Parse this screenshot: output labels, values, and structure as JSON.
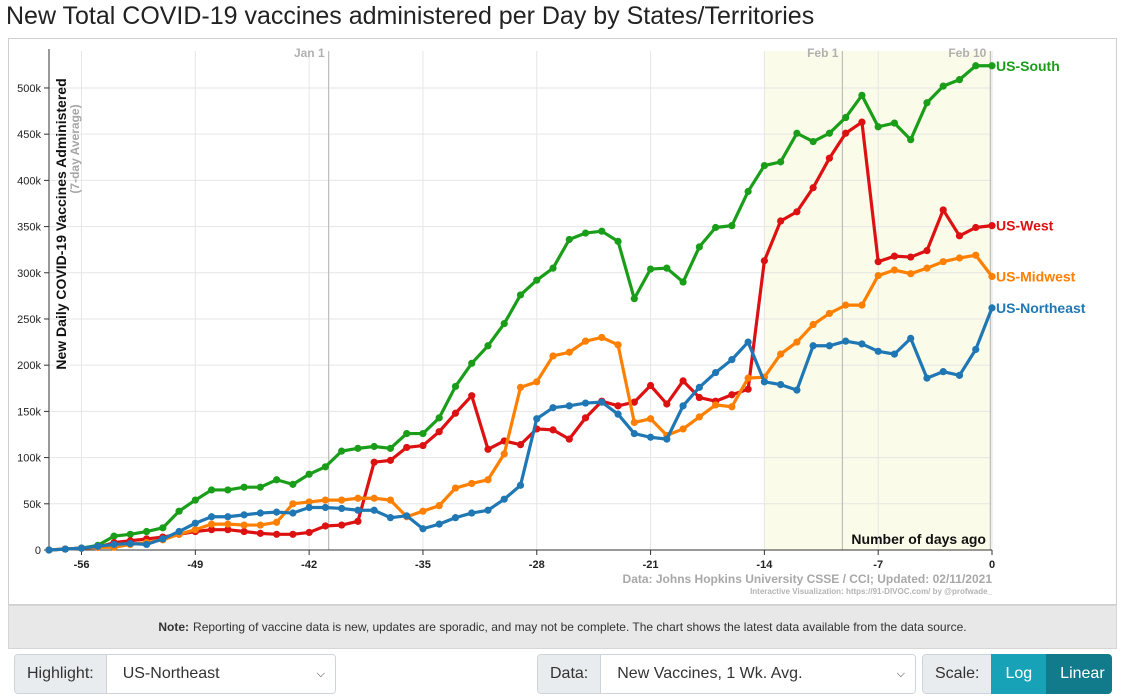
{
  "page": {
    "title": "New Total COVID-19 vaccines administered per Day by States/Territories"
  },
  "note": {
    "label": "Note:",
    "text": "Reporting of vaccine data is new, updates are sporadic, and may not be complete. The chart shows the latest data available from the data source."
  },
  "controls": {
    "highlight_label": "Highlight:",
    "highlight_value": "US-Northeast",
    "data_label": "Data:",
    "data_value": "New Vaccines, 1 Wk. Avg.",
    "scale_label": "Scale:",
    "scale_log": "Log",
    "scale_linear": "Linear",
    "scale_selected": "Linear"
  },
  "chart_data": {
    "type": "line",
    "title": "New Total COVID-19 vaccines administered per Day by States/Territories",
    "ylabel": "New Daily COVID-19 Vaccines Administered",
    "ylabel_sub": "(7-day Average)",
    "xlabel": "Number of days ago",
    "xlim": [
      -58,
      0
    ],
    "ylim": [
      0,
      540000
    ],
    "x_ticks": [
      -56,
      -49,
      -42,
      -35,
      -28,
      -21,
      -14,
      -7,
      0
    ],
    "y_ticks": [
      0,
      50000,
      100000,
      150000,
      200000,
      250000,
      300000,
      350000,
      400000,
      450000,
      500000
    ],
    "y_tick_labels": [
      "0",
      "50k",
      "100k",
      "150k",
      "200k",
      "250k",
      "300k",
      "350k",
      "400k",
      "450k",
      "500k"
    ],
    "date_markers": [
      {
        "label": "Jan 1",
        "x": -40.8
      },
      {
        "label": "Feb 1",
        "x": -9.2
      },
      {
        "label": "Feb 10",
        "x": -0.1
      }
    ],
    "highlight_region": [
      -14,
      0
    ],
    "grid": true,
    "source": "Data: Johns Hopkins University CSSE / CCI; Updated: 02/11/2021",
    "credit": "Interactive Visualization: https://91-DIVOC.com/ by @profwade_",
    "x": [
      -58,
      -57,
      -56,
      -55,
      -54,
      -53,
      -52,
      -51,
      -50,
      -49,
      -48,
      -47,
      -46,
      -45,
      -44,
      -43,
      -42,
      -41,
      -40,
      -39,
      -38,
      -37,
      -36,
      -35,
      -34,
      -33,
      -32,
      -31,
      -30,
      -29,
      -28,
      -27,
      -26,
      -25,
      -24,
      -23,
      -22,
      -21,
      -20,
      -19,
      -18,
      -17,
      -16,
      -15,
      -14,
      -13,
      -12,
      -11,
      -10,
      -9,
      -8,
      -7,
      -6,
      -5,
      -4,
      -3,
      -2,
      -1,
      0
    ],
    "series": [
      {
        "name": "US-South",
        "color": "#1a9e1a",
        "values": [
          0,
          1000,
          2000,
          5000,
          15000,
          17000,
          20000,
          24000,
          42000,
          54000,
          65000,
          65000,
          68000,
          68000,
          76000,
          71000,
          82000,
          90000,
          107000,
          110000,
          112000,
          110000,
          126000,
          126000,
          143000,
          177000,
          202000,
          221000,
          245000,
          276000,
          292000,
          305000,
          336000,
          343000,
          345000,
          334000,
          272000,
          304000,
          305000,
          290000,
          328000,
          349000,
          351000,
          388000,
          416000,
          420000,
          451000,
          442000,
          451000,
          468000,
          492000,
          458000,
          462000,
          444000,
          484000,
          502000,
          509000,
          524000,
          524000
        ]
      },
      {
        "name": "US-West",
        "color": "#dd1111",
        "values": [
          0,
          1000,
          2000,
          3000,
          8000,
          10000,
          12000,
          14000,
          17000,
          20000,
          22000,
          22000,
          20000,
          18000,
          17000,
          17000,
          19000,
          26000,
          27000,
          31000,
          95000,
          97000,
          111000,
          113000,
          128000,
          148000,
          167000,
          109000,
          118000,
          114000,
          131000,
          130000,
          120000,
          143000,
          161000,
          156000,
          160000,
          178000,
          158000,
          183000,
          165000,
          161000,
          168000,
          174000,
          313000,
          356000,
          366000,
          392000,
          424000,
          451000,
          463000,
          312000,
          318000,
          317000,
          324000,
          368000,
          340000,
          349000,
          351000
        ]
      },
      {
        "name": "US-Midwest",
        "color": "#ff8000",
        "values": [
          0,
          1000,
          2000,
          3000,
          3000,
          6000,
          8000,
          11000,
          17000,
          22000,
          28000,
          28000,
          27000,
          27000,
          30000,
          50000,
          52000,
          54000,
          54000,
          56000,
          56000,
          54000,
          36000,
          42000,
          48000,
          67000,
          72000,
          76000,
          104000,
          176000,
          182000,
          210000,
          214000,
          226000,
          230000,
          222000,
          138000,
          142000,
          124000,
          131000,
          144000,
          157000,
          155000,
          186000,
          187000,
          212000,
          225000,
          244000,
          256000,
          265000,
          265000,
          297000,
          303000,
          299000,
          305000,
          312000,
          316000,
          319000,
          296000
        ]
      },
      {
        "name": "US-Northeast",
        "color": "#1f77b4",
        "values": [
          0,
          1000,
          2000,
          4000,
          6000,
          7000,
          6000,
          12000,
          20000,
          29000,
          36000,
          36000,
          38000,
          40000,
          41000,
          40000,
          46000,
          46000,
          45000,
          43000,
          43000,
          35000,
          37000,
          23000,
          28000,
          35000,
          40000,
          43000,
          55000,
          70000,
          142000,
          154000,
          156000,
          159000,
          160000,
          147000,
          126000,
          122000,
          120000,
          156000,
          176000,
          192000,
          206000,
          225000,
          182000,
          179000,
          173000,
          221000,
          221000,
          226000,
          223000,
          215000,
          212000,
          229000,
          186000,
          193000,
          189000,
          217000,
          262000
        ]
      }
    ]
  }
}
